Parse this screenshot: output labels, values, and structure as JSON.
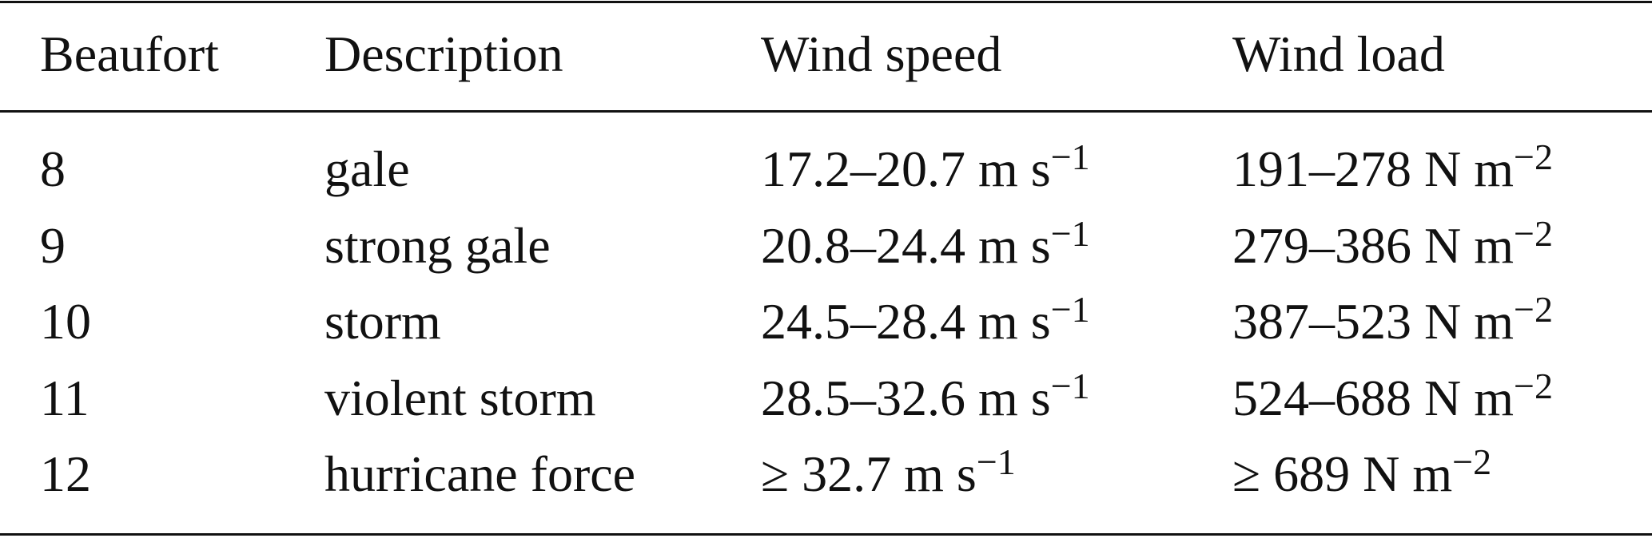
{
  "table": {
    "header": [
      "Beaufort",
      "Description",
      "Wind speed",
      "Wind load"
    ],
    "rows": [
      [
        "8",
        "gale",
        {
          "main": "17.2–20.7 m s",
          "sup": "−1"
        },
        {
          "main": "191–278 N m",
          "sup": "−2"
        }
      ],
      [
        "9",
        "strong gale",
        {
          "main": "20.8–24.4 m s",
          "sup": "−1"
        },
        {
          "main": "279–386 N m",
          "sup": "−2"
        }
      ],
      [
        "10",
        "storm",
        {
          "main": "24.5–28.4 m s",
          "sup": "−1"
        },
        {
          "main": "387–523 N m",
          "sup": "−2"
        }
      ],
      [
        "11",
        "violent storm",
        {
          "main": "28.5–32.6 m s",
          "sup": "−1"
        },
        {
          "main": "524–688 N m",
          "sup": "−2"
        }
      ],
      [
        "12",
        "hurricane force",
        {
          "main": "≥ 32.7 m s",
          "sup": "−1"
        },
        {
          "main": "≥ 689 N m",
          "sup": "−2"
        }
      ]
    ]
  }
}
